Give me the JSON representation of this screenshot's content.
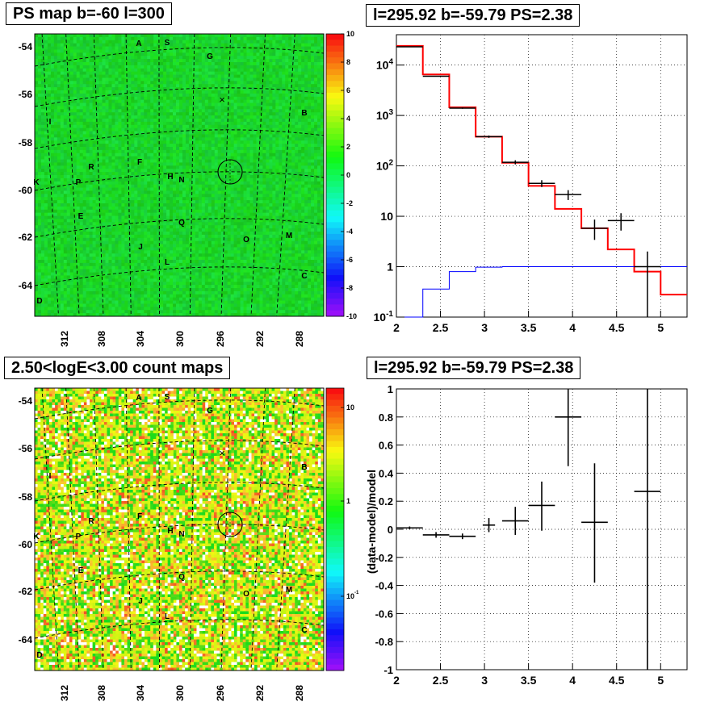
{
  "panels": {
    "tl": {
      "title": "PS map b=-60 l=300"
    },
    "tr": {
      "title": "l=295.92 b=-59.79 PS=2.38"
    },
    "bl": {
      "title": "2.50<logE<3.00 count maps"
    },
    "br": {
      "title": "l=295.92 b=-59.79 PS=2.38"
    }
  },
  "chart_data": [
    {
      "type": "heatmap",
      "title": "PS map b=-60 l=300",
      "x_ticks": [
        "312",
        "308",
        "304",
        "300",
        "296",
        "292",
        "288"
      ],
      "y_ticks": [
        "-54",
        "-56",
        "-58",
        "-60",
        "-62",
        "-64"
      ],
      "colorbar": {
        "ticks": [
          "10",
          "8",
          "6",
          "4",
          "2",
          "0",
          "-2",
          "-4",
          "-6",
          "-8",
          "-10"
        ],
        "range": [
          -10,
          10
        ]
      },
      "source_labels": [
        "A",
        "S",
        "G",
        "B",
        "I",
        "F",
        "R",
        "P",
        "K",
        "H",
        "N",
        "E",
        "Q",
        "J",
        "O",
        "M",
        "L",
        "C",
        "D"
      ],
      "dominant_value": 0,
      "marker_symbol": "×",
      "circle": {
        "l": 295.92,
        "b": -59.79
      }
    },
    {
      "type": "line",
      "title": "l=295.92 b=-59.79 PS=2.38",
      "y_scale": "log",
      "xlim": [
        2,
        5.3
      ],
      "ylim": [
        0.1,
        40000
      ],
      "x_ticks": [
        "2",
        "2.5",
        "3",
        "3.5",
        "4",
        "4.5",
        "5"
      ],
      "y_ticks": [
        "10^{-1}",
        "1",
        "10",
        "10^{2}",
        "10^{3}",
        "10^{4}"
      ],
      "grid": true,
      "series": [
        {
          "role": "model",
          "color": "#ff0000",
          "bin_edges": [
            2.0,
            2.3,
            2.6,
            2.9,
            3.2,
            3.5,
            3.8,
            4.1,
            4.4,
            4.7,
            5.0,
            5.3
          ],
          "values": [
            24000,
            6500,
            1450,
            380,
            115,
            40,
            14,
            5.8,
            2.2,
            0.8,
            0.28
          ]
        },
        {
          "role": "point-source model",
          "color": "#0000ff",
          "bin_edges": [
            2.0,
            2.3,
            2.6,
            2.9,
            3.2,
            3.5,
            3.8,
            4.1,
            4.4,
            4.7,
            5.0,
            5.3
          ],
          "values": [
            0.09,
            0.36,
            0.8,
            0.98,
            1.0,
            1.0,
            1.0,
            1.0,
            1.0,
            1.0,
            1.0
          ]
        },
        {
          "role": "data",
          "color": "#000000",
          "points": [
            {
              "x": 2.15,
              "y": 23000,
              "xerr": 0.15,
              "ylo": 22800,
              "yhi": 23200
            },
            {
              "x": 2.45,
              "y": 6000,
              "xerr": 0.15,
              "ylo": 5900,
              "yhi": 6100
            },
            {
              "x": 2.75,
              "y": 1400,
              "xerr": 0.15,
              "ylo": 1360,
              "yhi": 1440
            },
            {
              "x": 3.05,
              "y": 380,
              "xerr": 0.15,
              "ylo": 360,
              "yhi": 400
            },
            {
              "x": 3.35,
              "y": 118,
              "xerr": 0.15,
              "ylo": 107,
              "yhi": 129
            },
            {
              "x": 3.65,
              "y": 45,
              "xerr": 0.15,
              "ylo": 38,
              "yhi": 52
            },
            {
              "x": 3.95,
              "y": 27,
              "xerr": 0.15,
              "ylo": 21,
              "yhi": 33
            },
            {
              "x": 4.25,
              "y": 5.8,
              "xerr": 0.15,
              "ylo": 3.4,
              "yhi": 8.6
            },
            {
              "x": 4.55,
              "y": 8.2,
              "xerr": 0.15,
              "ylo": 5.2,
              "yhi": 11.5
            },
            {
              "x": 4.85,
              "y": 1.0,
              "xerr": 0.15,
              "ylo": 0.05,
              "yhi": 2.0
            }
          ]
        }
      ]
    },
    {
      "type": "heatmap",
      "title": "2.50<logE<3.00 count maps",
      "x_ticks": [
        "312",
        "308",
        "304",
        "300",
        "296",
        "292",
        "288"
      ],
      "y_ticks": [
        "-54",
        "-56",
        "-58",
        "-60",
        "-62",
        "-64"
      ],
      "colorbar": {
        "ticks": [
          "10",
          "1",
          "10^{-1}"
        ],
        "scale": "log"
      },
      "source_labels": [
        "A",
        "S",
        "G",
        "B",
        "I",
        "F",
        "R",
        "P",
        "K",
        "H",
        "N",
        "E",
        "Q",
        "J",
        "O",
        "M",
        "L",
        "C",
        "D"
      ],
      "marker_symbol": "×",
      "circle": {
        "l": 295.92,
        "b": -59.79
      }
    },
    {
      "type": "scatter",
      "title": "l=295.92 b=-59.79 PS=2.38",
      "ylabel": "(data-model)/model",
      "xlim": [
        2,
        5.3
      ],
      "ylim": [
        -1,
        1
      ],
      "x_ticks": [
        "2",
        "2.5",
        "3",
        "3.5",
        "4",
        "4.5",
        "5"
      ],
      "y_ticks": [
        "1",
        "0.8",
        "0.6",
        "0.4",
        "0.2",
        "0",
        "-0.2",
        "-0.4",
        "-0.6",
        "-0.8",
        "-1"
      ],
      "grid": true,
      "points": [
        {
          "x": 2.15,
          "y": 0.01,
          "xerr": 0.15,
          "ylo": 0.0,
          "yhi": 0.02
        },
        {
          "x": 2.45,
          "y": -0.04,
          "xerr": 0.15,
          "ylo": -0.06,
          "yhi": -0.02
        },
        {
          "x": 2.75,
          "y": -0.05,
          "xerr": 0.15,
          "ylo": -0.07,
          "yhi": -0.03
        },
        {
          "x": 3.05,
          "y": 0.03,
          "xerr": 0.07,
          "ylo": -0.02,
          "yhi": 0.08
        },
        {
          "x": 3.35,
          "y": 0.06,
          "xerr": 0.15,
          "ylo": -0.04,
          "yhi": 0.16
        },
        {
          "x": 3.65,
          "y": 0.17,
          "xerr": 0.15,
          "ylo": -0.01,
          "yhi": 0.34
        },
        {
          "x": 3.95,
          "y": 0.8,
          "xerr": 0.15,
          "ylo": 0.45,
          "yhi": 1.0
        },
        {
          "x": 4.25,
          "y": 0.05,
          "xerr": 0.15,
          "ylo": -0.38,
          "yhi": 0.47
        },
        {
          "x": 4.85,
          "y": 0.27,
          "xerr": 0.15,
          "ylo": -1.0,
          "yhi": 1.0
        }
      ]
    }
  ]
}
